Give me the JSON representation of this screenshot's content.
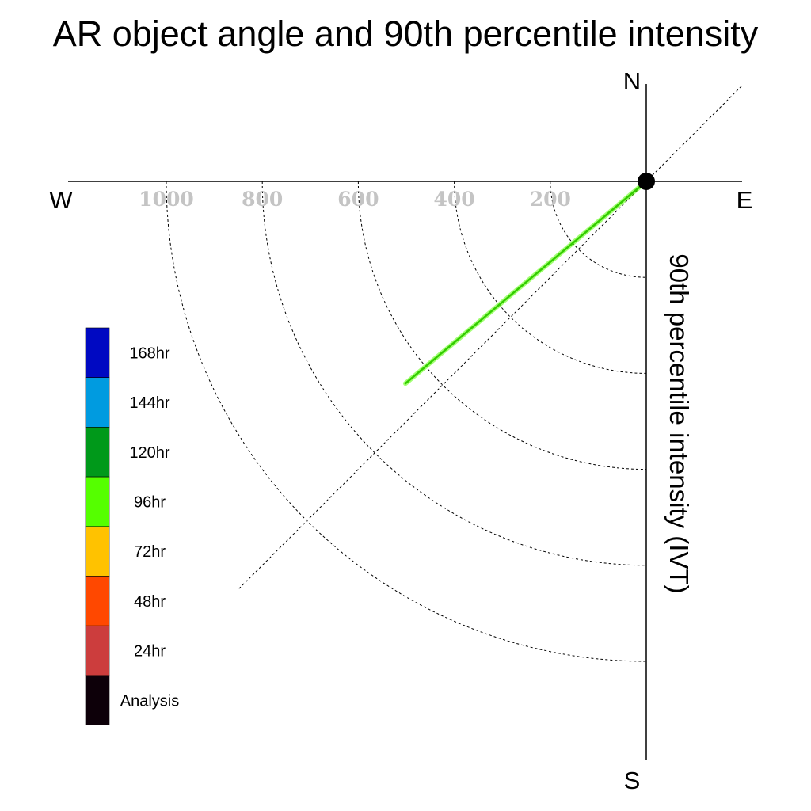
{
  "chart_data": {
    "type": "line",
    "title": "AR object angle and 90th percentile intensity",
    "ylabel": "90th percentile intensity (IVT)",
    "directions": {
      "north": "N",
      "south": "S",
      "east": "E",
      "west": "W"
    },
    "radius_ticks": [
      200,
      400,
      600,
      800,
      1000
    ],
    "radius_tick_labels": [
      "200",
      "400",
      "600",
      "800",
      "1000"
    ],
    "radius_max": 1200,
    "reference_angle_deg": 45,
    "series": [
      {
        "forecast": "96hr",
        "color": "#55ff00",
        "points": [
          {
            "angle_deg": 40,
            "intensity": 0
          },
          {
            "angle_deg": 40,
            "intensity": 655
          }
        ]
      }
    ],
    "origin_marker": {
      "color": "#000000"
    },
    "legend": {
      "placement": "left",
      "items": [
        {
          "label": "168hr",
          "color": "#0009c2"
        },
        {
          "label": "144hr",
          "color": "#009be0"
        },
        {
          "label": "120hr",
          "color": "#00991a"
        },
        {
          "label": "96hr",
          "color": "#55ff00"
        },
        {
          "label": "72hr",
          "color": "#ffc200"
        },
        {
          "label": "48hr",
          "color": "#ff4800"
        },
        {
          "label": "24hr",
          "color": "#cc3d3d"
        },
        {
          "label": "Analysis",
          "color": "#0d0009"
        }
      ]
    }
  }
}
